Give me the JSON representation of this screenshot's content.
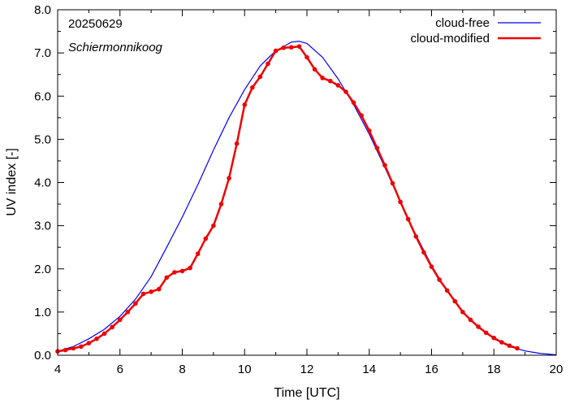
{
  "chart_data": {
    "type": "line",
    "date": "20250629",
    "location": "Schiermonnikoog",
    "xlabel": "Time  [UTC]",
    "ylabel": "UV index  [-]",
    "xlim": [
      4,
      20
    ],
    "ylim": [
      0,
      8
    ],
    "xticks": [
      "4",
      "6",
      "8",
      "10",
      "12",
      "14",
      "16",
      "18",
      "20"
    ],
    "yticks": [
      "0.0",
      "1.0",
      "2.0",
      "3.0",
      "4.0",
      "5.0",
      "6.0",
      "7.0",
      "8.0"
    ],
    "grid": false,
    "legend_position": "top-right",
    "series": [
      {
        "name": "cloud-free",
        "color": "#0000ff",
        "markers": false,
        "x": [
          4.0,
          4.5,
          5.0,
          5.5,
          6.0,
          6.5,
          7.0,
          7.5,
          8.0,
          8.5,
          9.0,
          9.5,
          10.0,
          10.5,
          11.0,
          11.5,
          11.75,
          12.0,
          12.5,
          13.0,
          13.5,
          14.0,
          14.5,
          15.0,
          15.5,
          16.0,
          16.5,
          17.0,
          17.5,
          18.0,
          18.5,
          19.0,
          19.5,
          20.0
        ],
        "y": [
          0.09,
          0.2,
          0.38,
          0.6,
          0.9,
          1.3,
          1.82,
          2.5,
          3.2,
          3.95,
          4.75,
          5.5,
          6.15,
          6.7,
          7.05,
          7.25,
          7.27,
          7.22,
          6.9,
          6.4,
          5.8,
          5.12,
          4.35,
          3.55,
          2.78,
          2.08,
          1.48,
          1.0,
          0.64,
          0.38,
          0.2,
          0.1,
          0.04,
          0.01
        ]
      },
      {
        "name": "cloud-modified",
        "color": "#ee0000",
        "markers": true,
        "x": [
          4.0,
          4.25,
          4.5,
          4.75,
          5.0,
          5.25,
          5.5,
          5.75,
          6.0,
          6.25,
          6.5,
          6.75,
          7.0,
          7.25,
          7.5,
          7.75,
          8.0,
          8.25,
          8.5,
          8.75,
          9.0,
          9.25,
          9.5,
          9.75,
          10.0,
          10.25,
          10.5,
          10.75,
          11.0,
          11.25,
          11.5,
          11.75,
          12.0,
          12.25,
          12.5,
          12.75,
          13.0,
          13.25,
          13.5,
          13.75,
          14.0,
          14.25,
          14.5,
          14.75,
          15.0,
          15.25,
          15.5,
          15.75,
          16.0,
          16.25,
          16.5,
          16.75,
          17.0,
          17.25,
          17.5,
          17.75,
          18.0,
          18.25,
          18.5,
          18.75
        ],
        "y": [
          0.09,
          0.12,
          0.16,
          0.2,
          0.28,
          0.38,
          0.5,
          0.65,
          0.82,
          1.0,
          1.2,
          1.42,
          1.47,
          1.53,
          1.8,
          1.92,
          1.95,
          2.02,
          2.35,
          2.7,
          3.0,
          3.5,
          4.1,
          4.9,
          5.8,
          6.2,
          6.45,
          6.75,
          7.05,
          7.12,
          7.13,
          7.15,
          6.9,
          6.62,
          6.42,
          6.35,
          6.25,
          6.1,
          5.85,
          5.55,
          5.2,
          4.8,
          4.4,
          3.98,
          3.55,
          3.15,
          2.75,
          2.38,
          2.05,
          1.75,
          1.5,
          1.25,
          1.0,
          0.82,
          0.66,
          0.52,
          0.4,
          0.3,
          0.22,
          0.16
        ]
      }
    ]
  }
}
